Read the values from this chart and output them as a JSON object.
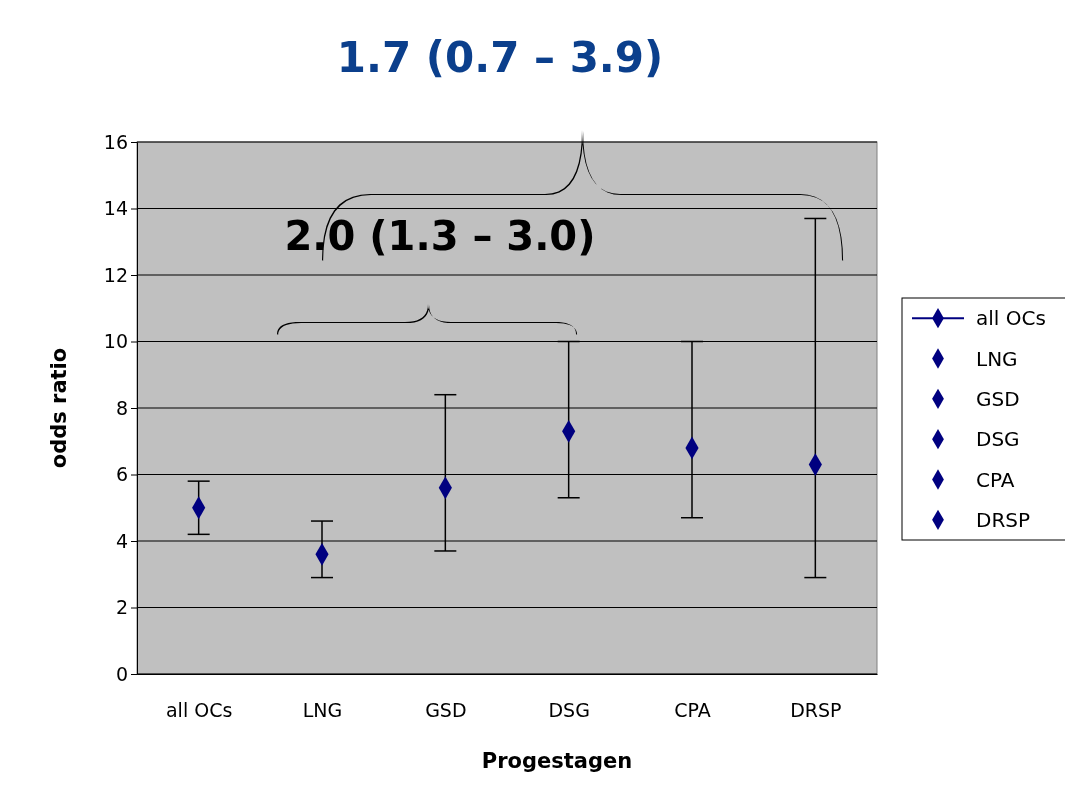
{
  "chart_data": {
    "type": "scatter",
    "title": "1.7 (0.7 – 3.9)",
    "xlabel": "Progestagen",
    "ylabel": "odds ratio",
    "categories": [
      "all OCs",
      "LNG",
      "GSD",
      "DSG",
      "CPA",
      "DRSP"
    ],
    "series": [
      {
        "name": "all OCs",
        "type": "line",
        "color": "#000080",
        "values": [
          5.0,
          null,
          null,
          null,
          null,
          null
        ],
        "errors": [
          [
            4.2,
            5.8
          ],
          null,
          null,
          null,
          null,
          null
        ]
      },
      {
        "name": "LNG",
        "color": "#000080",
        "values": [
          null,
          3.6,
          null,
          null,
          null,
          null
        ],
        "errors": [
          null,
          [
            2.9,
            4.6
          ],
          null,
          null,
          null,
          null
        ]
      },
      {
        "name": "GSD",
        "color": "#000080",
        "values": [
          null,
          null,
          5.6,
          null,
          null,
          null
        ],
        "errors": [
          null,
          null,
          [
            3.7,
            8.4
          ],
          null,
          null,
          null
        ]
      },
      {
        "name": "DSG",
        "color": "#000080",
        "values": [
          null,
          null,
          null,
          7.3,
          null,
          null
        ],
        "errors": [
          null,
          null,
          null,
          [
            5.3,
            10.0
          ],
          null,
          null
        ]
      },
      {
        "name": "CPA",
        "color": "#000080",
        "values": [
          null,
          null,
          null,
          null,
          6.8,
          null
        ],
        "errors": [
          null,
          null,
          null,
          null,
          [
            4.7,
            10.0
          ],
          null
        ]
      },
      {
        "name": "DRSP",
        "color": "#000080",
        "values": [
          null,
          null,
          null,
          null,
          null,
          6.3
        ],
        "errors": [
          null,
          null,
          null,
          null,
          null,
          [
            2.9,
            13.7
          ]
        ]
      }
    ],
    "ylim": [
      0,
      16
    ],
    "yticks": [
      0,
      2,
      4,
      6,
      8,
      10,
      12,
      14,
      16
    ],
    "grid": "y",
    "legend": "right",
    "marker": "diamond",
    "annotations": [
      "2.0 (1.3 – 3.0)"
    ]
  }
}
